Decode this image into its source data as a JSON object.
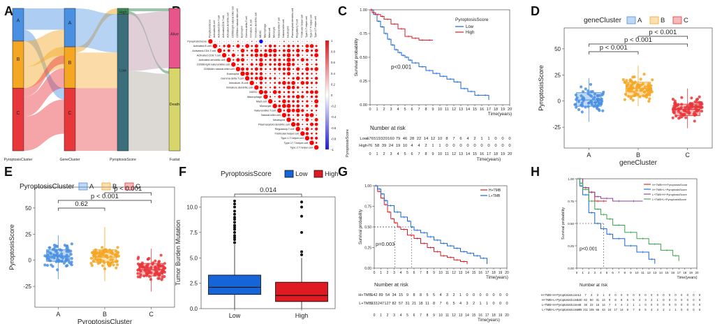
{
  "colors": {
    "clusterA": "#4a90e2",
    "clusterB": "#f5a623",
    "clusterC": "#e8373b",
    "low": "#1565d8",
    "high": "#e01a22",
    "alive": "#e8558a",
    "death": "#d8d56a",
    "psHigh": "#3a8a55",
    "psLow": "#3a6e7a"
  },
  "panels": {
    "A": "A",
    "B": "B",
    "C": "C",
    "D": "D",
    "E": "E",
    "F": "F",
    "G": "G",
    "H": "H"
  },
  "chart_data": [
    {
      "id": "A",
      "type": "sankey",
      "axes": [
        "PyroptosisCluster",
        "GeneCluster",
        "PyroptosisScore",
        "Fustat"
      ],
      "nodes": [
        {
          "axis": 0,
          "label": "A",
          "value": 0.23
        },
        {
          "axis": 0,
          "label": "B",
          "value": 0.33
        },
        {
          "axis": 0,
          "label": "C",
          "value": 0.44
        },
        {
          "axis": 1,
          "label": "A",
          "value": 0.27
        },
        {
          "axis": 1,
          "label": "B",
          "value": 0.29
        },
        {
          "axis": 1,
          "label": "C",
          "value": 0.44
        },
        {
          "axis": 2,
          "label": "High",
          "value": 0.04
        },
        {
          "axis": 2,
          "label": "Low",
          "value": 0.96
        },
        {
          "axis": 3,
          "label": "Alive",
          "value": 0.42
        },
        {
          "axis": 3,
          "label": "Death",
          "value": 0.58
        }
      ]
    },
    {
      "id": "B",
      "type": "heatmap",
      "title": "immune cell correlation",
      "cells": [
        "PyroptosisScore",
        "Activated.B.cell",
        "Activated.CD4.T.cell",
        "Activated.CD8.T.cell",
        "Activated.dendritic.cell",
        "CD56bright.natural.killer.cell",
        "CD56dim.natural.killer.cell",
        "Eosinophil",
        "Gamma.delta.T.cell",
        "Immature..B.cell",
        "Immature.dendritic.cell",
        "MDSC",
        "Macrophage",
        "Mast.cell",
        "Monocyte",
        "Natural.killer.T.cell",
        "Natural.killer.cell",
        "Neutrophil",
        "Plasmacytoid.dendritic.cell",
        "Regulatory.T.cell",
        "T.follicular.helper.cell",
        "Type.1.T.helper.cell",
        "Type.17.T.helper.cell",
        "Type.2.T.helper.cell"
      ],
      "colorbar": [
        "1",
        "0.8",
        "0.6",
        "0.4",
        "0.2",
        "0",
        "-0.2",
        "-0.4",
        "-0.6",
        "-0.8",
        "-1"
      ],
      "scale_min": -1,
      "scale_max": 1
    },
    {
      "id": "C",
      "type": "line",
      "legend_title": "PyroptosisScore",
      "legend": [
        "Low",
        "High"
      ],
      "ylabel": "Survival probability",
      "xlabel": "Time(years)",
      "yticks": [
        "0.00",
        "0.25",
        "0.50",
        "0.75",
        "1.00"
      ],
      "xticks": [
        "0",
        "1",
        "2",
        "3",
        "4",
        "5",
        "6",
        "7",
        "8",
        "9",
        "10",
        "11",
        "12",
        "13",
        "14",
        "15",
        "16",
        "17",
        "18",
        "19",
        "20"
      ],
      "pvalue": "p<0.001",
      "series": [
        {
          "name": "Low",
          "x": [
            0,
            0.5,
            1,
            1.5,
            2,
            2.5,
            3,
            3.5,
            4,
            4.5,
            5,
            5.5,
            6,
            7,
            8,
            9,
            10,
            11,
            12,
            13,
            14,
            15,
            16,
            17
          ],
          "y": [
            1,
            0.95,
            0.88,
            0.82,
            0.75,
            0.69,
            0.63,
            0.58,
            0.55,
            0.52,
            0.5,
            0.47,
            0.44,
            0.4,
            0.36,
            0.33,
            0.3,
            0.27,
            0.24,
            0.17,
            0.14,
            0.1,
            0.1,
            0.05
          ]
        },
        {
          "name": "High",
          "x": [
            0,
            0.3,
            0.8,
            1.5,
            2,
            3,
            4,
            5,
            6,
            7,
            8,
            9
          ],
          "y": [
            1,
            0.97,
            0.95,
            0.93,
            0.9,
            0.85,
            0.8,
            0.72,
            0.7,
            0.68,
            0.68,
            0.68
          ]
        }
      ],
      "risk_title": "Number at risk",
      "risk_ylabel": "PyroptosisScore",
      "risk_rows": [
        {
          "name": "Low",
          "values": [
            "676",
            "519",
            "320",
            "160",
            "79",
            "46",
            "28",
            "22",
            "14",
            "12",
            "10",
            "8",
            "7",
            "6",
            "4",
            "2",
            "1",
            "1",
            "0",
            "0",
            "0"
          ]
        },
        {
          "name": "High",
          "values": [
            "76",
            "58",
            "39",
            "24",
            "19",
            "10",
            "4",
            "4",
            "2",
            "1",
            "1",
            "0",
            "0",
            "0",
            "0",
            "0",
            "0",
            "0",
            "0",
            "0",
            "0"
          ]
        }
      ]
    },
    {
      "id": "D",
      "type": "box",
      "legend_title": "geneCluster",
      "legend": [
        "A",
        "B",
        "C"
      ],
      "categories": [
        "A",
        "B",
        "C"
      ],
      "xlabel": "geneCluster",
      "ylabel": "PyroptosisScore",
      "yticks": [
        "50",
        "25",
        "0",
        "-25"
      ],
      "ylim": [
        -45,
        70
      ],
      "boxes": [
        {
          "q1": -5,
          "median": 1,
          "q3": 8,
          "wlo": -20,
          "whi": 22
        },
        {
          "q1": 5,
          "median": 12,
          "q3": 18,
          "wlo": -5,
          "whi": 34
        },
        {
          "q1": -14,
          "median": -8,
          "q3": -3,
          "wlo": -26,
          "whi": 12
        }
      ],
      "comparisons": [
        "p < 0.001",
        "p < 0.001",
        "p < 0.001"
      ]
    },
    {
      "id": "E",
      "type": "box",
      "legend_title": "PyroptosisCluster",
      "legend": [
        "A",
        "B",
        "C"
      ],
      "categories": [
        "A",
        "B",
        "C"
      ],
      "xlabel": "PyroptosisCluster",
      "ylabel": "PyroptosisScore",
      "yticks": [
        "50",
        "25",
        "0",
        "-25"
      ],
      "ylim": [
        -45,
        70
      ],
      "boxes": [
        {
          "q1": -1,
          "median": 4,
          "q3": 10,
          "wlo": -18,
          "whi": 24
        },
        {
          "q1": -2,
          "median": 3,
          "q3": 10,
          "wlo": -20,
          "whi": 32
        },
        {
          "q1": -15,
          "median": -9,
          "q3": -3,
          "wlo": -30,
          "whi": 11
        }
      ],
      "comparisons": [
        "0.62",
        "p < 0.001",
        "p < 0.001"
      ]
    },
    {
      "id": "F",
      "type": "box",
      "legend_title": "PyroptosisScore",
      "legend": [
        "Low",
        "High"
      ],
      "categories": [
        "Low",
        "High"
      ],
      "ylabel": "Tumor Burden Mutation",
      "yticks": [
        "10.0",
        "7.5",
        "5.0",
        "2.5",
        "0.0"
      ],
      "ylim": [
        0,
        11
      ],
      "boxes": [
        {
          "q1": 1.4,
          "median": 2.1,
          "q3": 3.3,
          "wlo": 0,
          "whi": 6.3
        },
        {
          "q1": 0.7,
          "median": 1.3,
          "q3": 2.6,
          "wlo": 0,
          "whi": 5.0
        }
      ],
      "pvalue": "0.014"
    },
    {
      "id": "G",
      "type": "line",
      "legend": [
        "H+TMB",
        "L+TMB"
      ],
      "ylabel": "Survival probability",
      "xlabel": "Time(years)",
      "yticks": [
        "0.00",
        "0.25",
        "0.50",
        "0.75",
        "1.00"
      ],
      "xticks": [
        "0",
        "1",
        "2",
        "3",
        "4",
        "5",
        "6",
        "7",
        "8",
        "9",
        "10",
        "11",
        "12",
        "13",
        "14",
        "15",
        "16",
        "17",
        "18",
        "19",
        "20"
      ],
      "pvalue": "p=0.003",
      "series": [
        {
          "name": "H+TMB",
          "x": [
            0,
            0.5,
            1,
            1.5,
            2,
            2.5,
            3,
            3.5,
            4,
            5,
            6,
            7,
            8,
            9,
            10,
            11,
            12,
            13,
            14
          ],
          "y": [
            1,
            0.93,
            0.85,
            0.77,
            0.68,
            0.6,
            0.55,
            0.5,
            0.47,
            0.4,
            0.36,
            0.3,
            0.25,
            0.2,
            0.15,
            0.13,
            0.1,
            0.08,
            0.05
          ]
        },
        {
          "name": "L+TMB",
          "x": [
            0,
            0.5,
            1,
            1.5,
            2,
            3,
            4,
            5,
            5.5,
            6,
            7,
            8,
            9,
            10,
            11,
            12,
            13,
            14,
            15,
            16,
            17
          ],
          "y": [
            1,
            0.96,
            0.9,
            0.82,
            0.76,
            0.68,
            0.62,
            0.57,
            0.5,
            0.46,
            0.43,
            0.38,
            0.34,
            0.3,
            0.27,
            0.24,
            0.2,
            0.18,
            0.15,
            0.12,
            0.05
          ]
        }
      ],
      "risk_title": "Number at risk",
      "risk_rows": [
        {
          "name": "H+TMB",
          "values": [
            "142",
            "89",
            "54",
            "34",
            "15",
            "9",
            "8",
            "8",
            "5",
            "5",
            "4",
            "3",
            "2",
            "1",
            "0",
            "0",
            "0",
            "0",
            "0",
            "0",
            "0"
          ]
        },
        {
          "name": "L+TMB",
          "values": [
            "333",
            "247",
            "127",
            "82",
            "57",
            "31",
            "21",
            "18",
            "11",
            "8",
            "7",
            "6",
            "5",
            "4",
            "3",
            "2",
            "1",
            "1",
            "0",
            "0",
            "0"
          ]
        }
      ]
    },
    {
      "id": "H",
      "type": "line",
      "legend": [
        "H+TMB+H+PyroptosisScore",
        "H+TMB+L+PyroptosisScore",
        "L+TMB+H+PyroptosisScore",
        "L+TMB+L+PyroptosisScore"
      ],
      "ylabel": "Survival probability",
      "xlabel": "Time(years)",
      "yticks": [
        "0.00",
        "0.25",
        "0.50",
        "0.75",
        "1.00"
      ],
      "xticks": [
        "0",
        "1",
        "2",
        "3",
        "4",
        "5",
        "6",
        "7",
        "8",
        "9",
        "10",
        "11",
        "12",
        "13",
        "14",
        "15",
        "16",
        "17",
        "18",
        "19",
        "20"
      ],
      "pvalue": "p<0.001",
      "series": [
        {
          "name": "H+TMB+H+PyroptosisScore",
          "x": [
            0,
            1,
            2,
            3,
            4,
            5
          ],
          "y": [
            1,
            0.9,
            0.85,
            0.75,
            0.75,
            0.75
          ]
        },
        {
          "name": "H+TMB+L+PyroptosisScore",
          "x": [
            0,
            0.5,
            1,
            2,
            3,
            4,
            5,
            6,
            8,
            10,
            12,
            13
          ],
          "y": [
            1,
            0.92,
            0.82,
            0.62,
            0.5,
            0.44,
            0.38,
            0.33,
            0.25,
            0.18,
            0.1,
            0.05
          ]
        },
        {
          "name": "L+TMB+H+PyroptosisScore",
          "x": [
            0,
            1,
            2,
            3,
            4,
            6,
            8,
            11
          ],
          "y": [
            1,
            0.9,
            0.85,
            0.8,
            0.78,
            0.75,
            0.75,
            0.75
          ]
        },
        {
          "name": "L+TMB+L+PyroptosisScore",
          "x": [
            0,
            0.5,
            1,
            2,
            3,
            4,
            5,
            6,
            8,
            10,
            12,
            14,
            16,
            17
          ],
          "y": [
            1,
            0.95,
            0.88,
            0.75,
            0.66,
            0.6,
            0.55,
            0.48,
            0.4,
            0.33,
            0.27,
            0.2,
            0.14,
            0.08
          ]
        }
      ],
      "risk_title": "Number at risk",
      "risk_rows": [
        {
          "name": "H+TMB+H+PyroptosisScore",
          "values": [
            "12",
            "7",
            "4",
            "3",
            "1",
            "0",
            "0",
            "0",
            "0",
            "0",
            "0",
            "0",
            "0",
            "0",
            "0",
            "0",
            "0",
            "0",
            "0",
            "0",
            "0"
          ]
        },
        {
          "name": "H+TMB+L+PyroptosisScore",
          "values": [
            "130",
            "82",
            "50",
            "31",
            "14",
            "9",
            "8",
            "8",
            "5",
            "5",
            "4",
            "3",
            "2",
            "1",
            "0",
            "0",
            "0",
            "0",
            "0",
            "0",
            "0"
          ]
        },
        {
          "name": "L+TMB+H+PyroptosisScore",
          "values": [
            "48",
            "36",
            "22",
            "16",
            "14",
            "7",
            "4",
            "4",
            "2",
            "1",
            "1",
            "0",
            "0",
            "0",
            "0",
            "0",
            "0",
            "0",
            "0",
            "0",
            "0"
          ]
        },
        {
          "name": "L+TMB+L+PyroptosisScore",
          "values": [
            "285",
            "211",
            "105",
            "66",
            "43",
            "24",
            "17",
            "14",
            "9",
            "7",
            "6",
            "5",
            "4",
            "3",
            "2",
            "1",
            "1",
            "0",
            "0",
            "0",
            "0"
          ]
        }
      ]
    }
  ]
}
